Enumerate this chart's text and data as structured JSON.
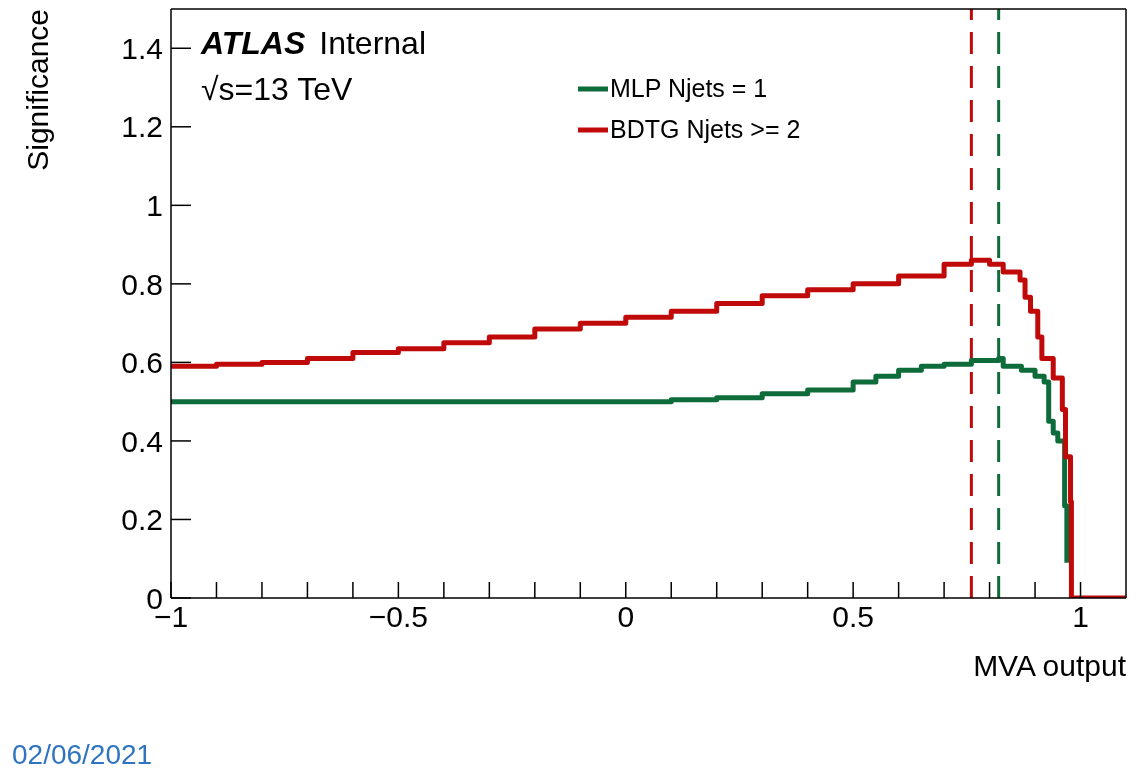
{
  "chart_data": {
    "type": "step",
    "xlabel": "MVA output",
    "ylabel": "Significance",
    "annotations": [
      "ATLAS Internal",
      "√s=13 TeV",
      "02/06/2021"
    ],
    "series": [
      {
        "name": "MLP Njets = 1",
        "color": "#0e6b3a",
        "x": [
          -1,
          -0.8,
          -0.6,
          -0.4,
          -0.2,
          0,
          0.1,
          0.2,
          0.3,
          0.4,
          0.5,
          0.55,
          0.6,
          0.65,
          0.7,
          0.76,
          0.82,
          0.83,
          0.87,
          0.9,
          0.92,
          0.93,
          0.94,
          0.95,
          0.965,
          0.97
        ],
        "values": [
          0.5,
          0.5,
          0.5,
          0.5,
          0.5,
          0.5,
          0.505,
          0.51,
          0.52,
          0.53,
          0.55,
          0.565,
          0.58,
          0.59,
          0.595,
          0.605,
          0.61,
          0.59,
          0.58,
          0.565,
          0.55,
          0.45,
          0.42,
          0.4,
          0.235,
          0.09
        ]
      },
      {
        "name": "BDTG Njets >= 2",
        "color": "#c00a0a",
        "x": [
          -1,
          -0.9,
          -0.8,
          -0.7,
          -0.6,
          -0.5,
          -0.4,
          -0.3,
          -0.2,
          -0.1,
          0,
          0.1,
          0.2,
          0.3,
          0.4,
          0.5,
          0.6,
          0.7,
          0.76,
          0.8,
          0.83,
          0.867,
          0.878,
          0.89,
          0.906,
          0.915,
          0.94,
          0.96,
          0.967,
          0.978,
          0.98,
          1.1
        ],
        "values": [
          0.59,
          0.595,
          0.6,
          0.61,
          0.625,
          0.635,
          0.65,
          0.665,
          0.685,
          0.7,
          0.715,
          0.73,
          0.75,
          0.77,
          0.785,
          0.8,
          0.82,
          0.85,
          0.86,
          0.85,
          0.83,
          0.81,
          0.766,
          0.73,
          0.665,
          0.61,
          0.56,
          0.48,
          0.36,
          0.245,
          0,
          0
        ]
      }
    ],
    "ref_lines": [
      {
        "axis": "x",
        "value": 0.76,
        "color": "#c00a0a",
        "line_style": "dashed"
      },
      {
        "axis": "x",
        "value": 0.82,
        "color": "#0e6b3a",
        "line_style": "dashed"
      }
    ],
    "xlim": [
      -1,
      1.1
    ],
    "ylim": [
      0,
      1.5
    ],
    "xticks": [
      {
        "value": -1,
        "label": "−1"
      },
      {
        "value": -0.9,
        "label": null
      },
      {
        "value": -0.8,
        "label": null
      },
      {
        "value": -0.7,
        "label": null
      },
      {
        "value": -0.6,
        "label": null
      },
      {
        "value": -0.5,
        "label": "−0.5"
      },
      {
        "value": -0.4,
        "label": null
      },
      {
        "value": -0.3,
        "label": null
      },
      {
        "value": -0.2,
        "label": null
      },
      {
        "value": -0.1,
        "label": null
      },
      0,
      {
        "value": 0.1,
        "label": null
      },
      {
        "value": 0.2,
        "label": null
      },
      {
        "value": 0.3,
        "label": null
      },
      {
        "value": 0.4,
        "label": null
      },
      0.5,
      {
        "value": 0.6,
        "label": null
      },
      {
        "value": 0.7,
        "label": null
      },
      {
        "value": 0.8,
        "label": null
      },
      {
        "value": 0.9,
        "label": null
      },
      1
    ],
    "yticks": [
      0,
      0.2,
      0.4,
      0.6,
      0.8,
      1,
      1.2,
      1.4
    ],
    "grid": false,
    "legend": "top right",
    "marker": "none",
    "line_style": "solid"
  }
}
